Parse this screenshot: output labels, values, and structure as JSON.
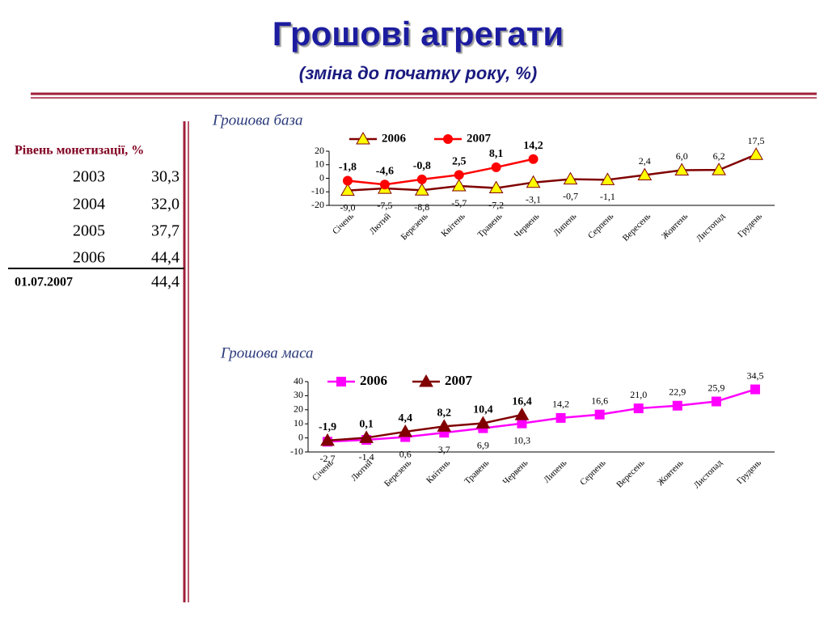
{
  "header": {
    "title": "Грошові агрегати",
    "subtitle": "(зміна до початку року,  %)"
  },
  "table": {
    "heading": "Рівень монетизації, %",
    "rows": [
      [
        "2003",
        "30,3"
      ],
      [
        "2004",
        "32,0"
      ],
      [
        "2005",
        "37,7"
      ],
      [
        "2006",
        "44,4"
      ],
      [
        "01.07.2007",
        "44,4"
      ]
    ]
  },
  "chart_data": [
    {
      "type": "line",
      "title": "Грошова база",
      "categories": [
        "Січень",
        "Лютий",
        "Березень",
        "Квітень",
        "Травень",
        "Червень",
        "Липень",
        "Серпень",
        "Вересень",
        "Жовтень",
        "Листопад",
        "Грудень"
      ],
      "ylim": [
        -20,
        20
      ],
      "yticks": [
        -20,
        -10,
        0,
        10,
        20
      ],
      "series": [
        {
          "name": "2006",
          "color": "#800000",
          "marker": "triangle",
          "marker_color": "#ffff00",
          "values": [
            -9.0,
            -7.5,
            -8.8,
            -5.7,
            -7.2,
            -3.1,
            -0.7,
            -1.1,
            2.4,
            6.0,
            6.2,
            17.5
          ],
          "value_labels": [
            "-9,0",
            "-7,5",
            "-8,8",
            "-5,7",
            "-7,2",
            "-3,1",
            "-0,7",
            "-1,1",
            "2,4",
            "6,0",
            "6,2",
            "17,5"
          ]
        },
        {
          "name": "2007",
          "color": "#ff0000",
          "marker": "circle",
          "marker_color": "#ff0000",
          "values": [
            -1.8,
            -4.6,
            -0.8,
            2.5,
            8.1,
            14.2,
            null,
            null,
            null,
            null,
            null,
            null
          ],
          "value_labels": [
            "-1,8",
            "-4,6",
            "-0,8",
            "2,5",
            "8,1",
            "14,2",
            null,
            null,
            null,
            null,
            null,
            null
          ]
        }
      ]
    },
    {
      "type": "line",
      "title": "Грошова маса",
      "categories": [
        "Січень",
        "Лютий",
        "Березень",
        "Квітень",
        "Травень",
        "Червень",
        "Липень",
        "Серпень",
        "Вересень",
        "Жовтень",
        "Листопад",
        "Грудень"
      ],
      "ylim": [
        -10,
        40
      ],
      "yticks": [
        -10,
        0,
        10,
        20,
        30,
        40
      ],
      "series": [
        {
          "name": "2006",
          "color": "#ff00ff",
          "marker": "square",
          "marker_color": "#ff00ff",
          "values": [
            -2.7,
            -1.4,
            0.6,
            3.7,
            6.9,
            10.3,
            14.2,
            16.6,
            21.0,
            22.9,
            25.9,
            34.5
          ],
          "value_labels": [
            "-2,7",
            "-1,4",
            "0,6",
            "3,7",
            "6,9",
            "10,3",
            "14,2",
            "16,6",
            "21,0",
            "22,9",
            "25,9",
            "34,5"
          ]
        },
        {
          "name": "2007",
          "color": "#800000",
          "marker": "triangle",
          "marker_color": "#800000",
          "values": [
            -1.9,
            0.1,
            4.4,
            8.2,
            10.4,
            16.4,
            null,
            null,
            null,
            null,
            null,
            null
          ],
          "value_labels": [
            "-1,9",
            "0,1",
            "4,4",
            "8,2",
            "10,4",
            "16,4",
            null,
            null,
            null,
            null,
            null,
            null
          ]
        }
      ]
    }
  ]
}
